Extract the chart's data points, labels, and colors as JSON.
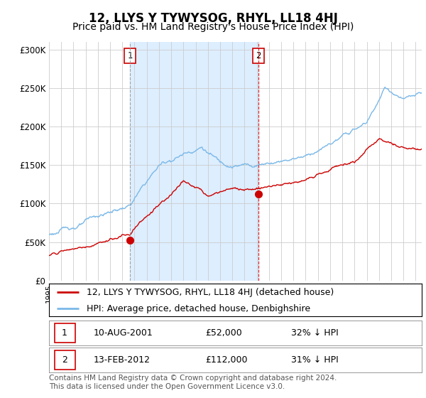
{
  "title": "12, LLYS Y TYWYSOG, RHYL, LL18 4HJ",
  "subtitle": "Price paid vs. HM Land Registry's House Price Index (HPI)",
  "ylim": [
    0,
    310000
  ],
  "yticks": [
    0,
    50000,
    100000,
    150000,
    200000,
    250000,
    300000
  ],
  "ytick_labels": [
    "£0",
    "£50K",
    "£100K",
    "£150K",
    "£200K",
    "£250K",
    "£300K"
  ],
  "sale1_year": 2001.625,
  "sale1_price": 52000,
  "sale1_label": "10-AUG-2001",
  "sale1_pct": "32%",
  "sale2_year": 2012.125,
  "sale2_price": 112000,
  "sale2_label": "13-FEB-2012",
  "sale2_pct": "31%",
  "hpi_color": "#7ab8e8",
  "price_color": "#cc0000",
  "vline1_color": "#999999",
  "vline2_color": "#cc0000",
  "marker_color": "#cc0000",
  "bg_color": "#ffffff",
  "grid_color": "#cccccc",
  "shade_color": "#ddeeff",
  "legend_label_price": "12, LLYS Y TYWYSOG, RHYL, LL18 4HJ (detached house)",
  "legend_label_hpi": "HPI: Average price, detached house, Denbighshire",
  "footer": "Contains HM Land Registry data © Crown copyright and database right 2024.\nThis data is licensed under the Open Government Licence v3.0.",
  "title_fontsize": 12,
  "subtitle_fontsize": 10,
  "tick_fontsize": 8.5,
  "legend_fontsize": 9,
  "footer_fontsize": 7.5,
  "xstart": 1995,
  "xend": 2025.5
}
